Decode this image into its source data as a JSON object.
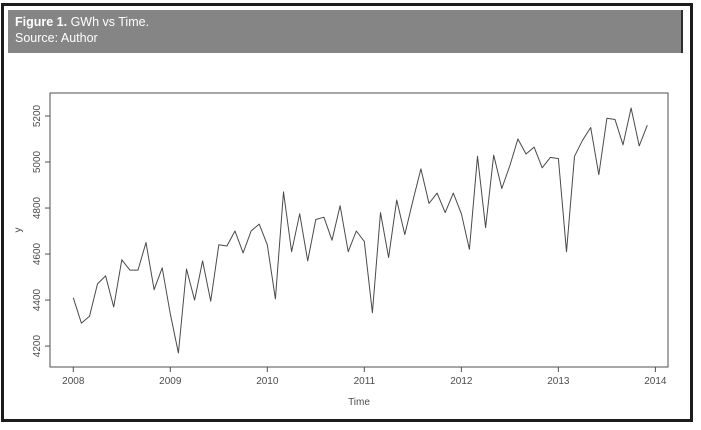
{
  "figure": {
    "caption_prefix": "Figure 1.",
    "caption_title": " GWh vs Time.",
    "source": "Source: Author"
  },
  "colors": {
    "header_bg": "#858585",
    "header_text": "#ffffff",
    "outer_border": "#1c1c1c",
    "axis": "#4f4f4f",
    "line": "#4a4a4a",
    "background": "#ffffff"
  },
  "chart_data": {
    "type": "line",
    "title": "",
    "xlabel": "Time",
    "ylabel": "y",
    "grid": false,
    "legend": null,
    "x_ticks": [
      2008,
      2009,
      2010,
      2011,
      2012,
      2013,
      2014
    ],
    "y_ticks": [
      4200,
      4400,
      4600,
      4800,
      5000,
      5200
    ],
    "xlim": [
      2007.76,
      2014.13
    ],
    "ylim": [
      4109,
      5300
    ],
    "x_start": 2008,
    "frequency": 12,
    "series": [
      {
        "name": "GWh",
        "values": [
          4410,
          4300,
          4330,
          4470,
          4505,
          4370,
          4575,
          4530,
          4530,
          4650,
          4445,
          4540,
          4340,
          4170,
          4535,
          4400,
          4570,
          4395,
          4640,
          4635,
          4700,
          4605,
          4700,
          4730,
          4640,
          4405,
          4870,
          4610,
          4775,
          4570,
          4750,
          4760,
          4660,
          4810,
          4610,
          4700,
          4655,
          4345,
          4780,
          4585,
          4835,
          4685,
          4830,
          4970,
          4820,
          4865,
          4780,
          4865,
          4775,
          4620,
          5025,
          4715,
          5030,
          4885,
          4985,
          5100,
          5035,
          5065,
          4975,
          5020,
          5015,
          4610,
          5025,
          5095,
          5150,
          4945,
          5190,
          5185,
          5075,
          5235,
          5070,
          5160
        ]
      }
    ]
  }
}
